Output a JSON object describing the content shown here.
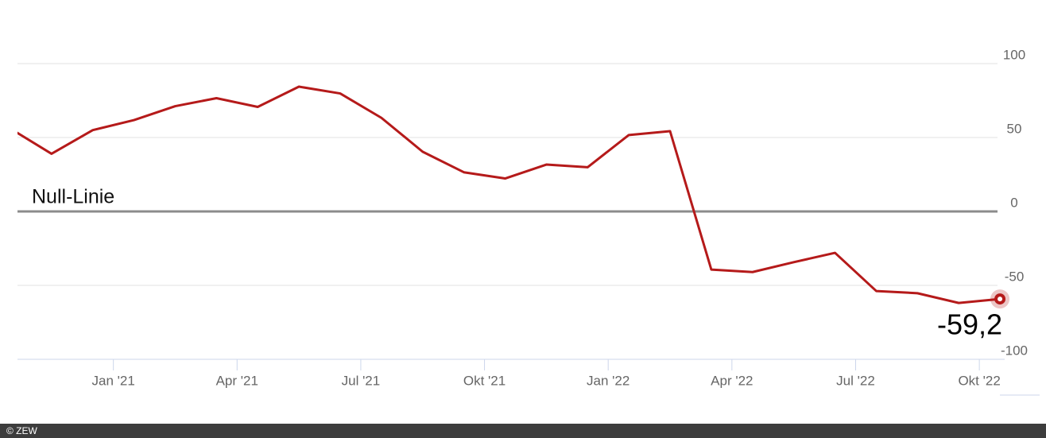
{
  "chart_data": {
    "type": "line",
    "x": [
      "2020-10",
      "2020-11",
      "2020-12",
      "2021-01",
      "2021-02",
      "2021-03",
      "2021-04",
      "2021-05",
      "2021-06",
      "2021-07",
      "2021-08",
      "2021-09",
      "2021-10",
      "2021-11",
      "2021-12",
      "2022-01",
      "2022-02",
      "2022-03",
      "2022-04",
      "2022-05",
      "2022-06",
      "2022-07",
      "2022-08",
      "2022-09",
      "2022-10"
    ],
    "series": [
      {
        "color": "#b51a1a",
        "values": [
          56.1,
          39.0,
          55.0,
          61.8,
          71.2,
          76.6,
          70.7,
          84.4,
          79.8,
          63.3,
          40.4,
          26.5,
          22.3,
          31.7,
          29.9,
          51.7,
          54.3,
          -39.3,
          -41.0,
          -34.3,
          -28.0,
          -53.8,
          -55.3,
          -61.9,
          -59.2
        ],
        "value_labels": [
          null,
          null,
          null,
          null,
          null,
          null,
          null,
          null,
          null,
          null,
          null,
          null,
          null,
          null,
          null,
          null,
          null,
          null,
          null,
          null,
          null,
          null,
          null,
          null,
          "-59,2"
        ]
      }
    ],
    "xlim": [
      "2020-10",
      "2022-11"
    ],
    "xticks": [
      {
        "value": "2021-01",
        "label": "Jan '21"
      },
      {
        "value": "2021-04",
        "label": "Apr '21"
      },
      {
        "value": "2021-07",
        "label": "Jul '21"
      },
      {
        "value": "2021-10",
        "label": "Okt '21"
      },
      {
        "value": "2022-01",
        "label": "Jan '22"
      },
      {
        "value": "2022-04",
        "label": "Apr '22"
      },
      {
        "value": "2022-07",
        "label": "Jul '22"
      },
      {
        "value": "2022-10",
        "label": "Okt '22"
      }
    ],
    "ylim": [
      -100,
      100
    ],
    "yticks": [
      100,
      50,
      0,
      -50,
      -100
    ],
    "grid": true,
    "zero_line_label": "Null-Linie"
  },
  "source": "© ZEW"
}
